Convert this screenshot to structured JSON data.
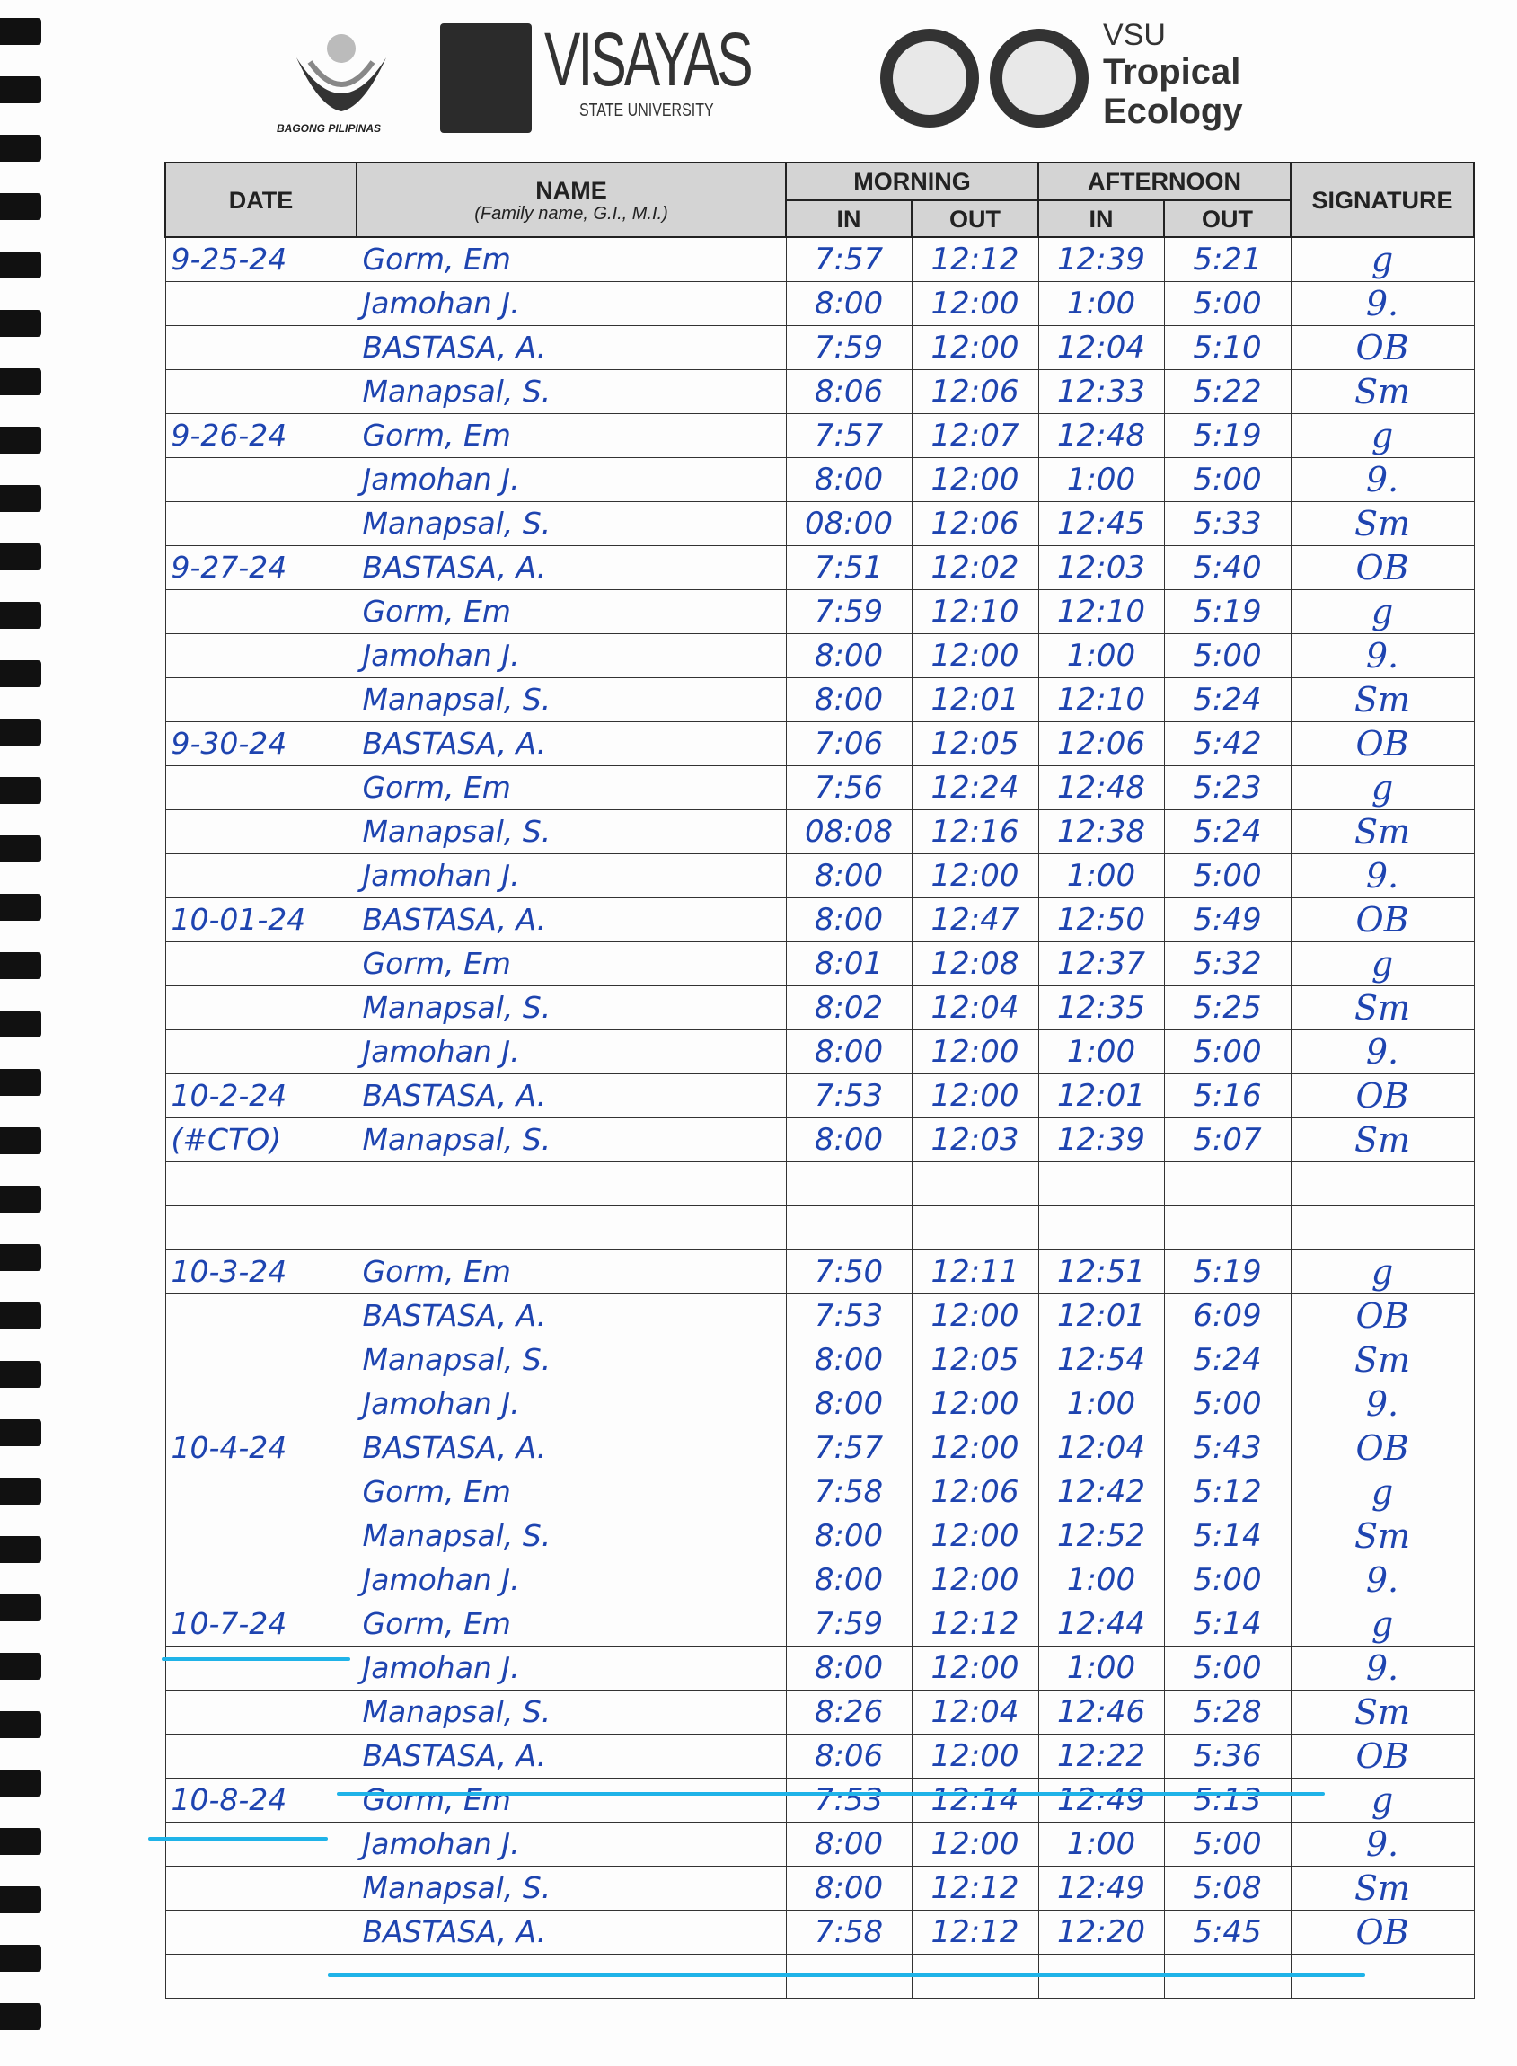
{
  "header": {
    "logos": {
      "bagong_pilipinas": "BAGONG PILIPINAS",
      "university": "VISAYAS",
      "university_sub": "STATE UNIVERSITY",
      "dept_line1": "VSU",
      "dept_line2": "Tropical",
      "dept_line3": "Ecology"
    }
  },
  "table": {
    "columns": {
      "date": "DATE",
      "name": "NAME",
      "name_sub": "(Family name, G.I., M.I.)",
      "morning": "MORNING",
      "afternoon": "AFTERNOON",
      "in": "IN",
      "out": "OUT",
      "signature": "SIGNATURE"
    },
    "ink_color": "#1e44b0",
    "highlight_color": "#1fb3e8",
    "rows": [
      {
        "date": "9-25-24",
        "name": "Gorm, Em",
        "am_in": "7:57",
        "am_out": "12:12",
        "pm_in": "12:39",
        "pm_out": "5:21",
        "sig": "g"
      },
      {
        "date": "",
        "name": "Jamohan J.",
        "am_in": "8:00",
        "am_out": "12:00",
        "pm_in": "1:00",
        "pm_out": "5:00",
        "sig": "9."
      },
      {
        "date": "",
        "name": "BASTASA, A.",
        "am_in": "7:59",
        "am_out": "12:00",
        "pm_in": "12:04",
        "pm_out": "5:10",
        "sig": "OB"
      },
      {
        "date": "",
        "name": "Manapsal, S.",
        "am_in": "8:06",
        "am_out": "12:06",
        "pm_in": "12:33",
        "pm_out": "5:22",
        "sig": "Sm"
      },
      {
        "date": "9-26-24",
        "name": "Gorm, Em",
        "am_in": "7:57",
        "am_out": "12:07",
        "pm_in": "12:48",
        "pm_out": "5:19",
        "sig": "g"
      },
      {
        "date": "",
        "name": "Jamohan J.",
        "am_in": "8:00",
        "am_out": "12:00",
        "pm_in": "1:00",
        "pm_out": "5:00",
        "sig": "9."
      },
      {
        "date": "",
        "name": "Manapsal, S.",
        "am_in": "08:00",
        "am_out": "12:06",
        "pm_in": "12:45",
        "pm_out": "5:33",
        "sig": "Sm"
      },
      {
        "date": "9-27-24",
        "name": "BASTASA, A.",
        "am_in": "7:51",
        "am_out": "12:02",
        "pm_in": "12:03",
        "pm_out": "5:40",
        "sig": "OB"
      },
      {
        "date": "",
        "name": "Gorm, Em",
        "am_in": "7:59",
        "am_out": "12:10",
        "pm_in": "12:10",
        "pm_out": "5:19",
        "sig": "g"
      },
      {
        "date": "",
        "name": "Jamohan J.",
        "am_in": "8:00",
        "am_out": "12:00",
        "pm_in": "1:00",
        "pm_out": "5:00",
        "sig": "9."
      },
      {
        "date": "",
        "name": "Manapsal, S.",
        "am_in": "8:00",
        "am_out": "12:01",
        "pm_in": "12:10",
        "pm_out": "5:24",
        "sig": "Sm"
      },
      {
        "date": "9-30-24",
        "name": "BASTASA, A.",
        "am_in": "7:06",
        "am_out": "12:05",
        "pm_in": "12:06",
        "pm_out": "5:42",
        "sig": "OB"
      },
      {
        "date": "",
        "name": "Gorm, Em",
        "am_in": "7:56",
        "am_out": "12:24",
        "pm_in": "12:48",
        "pm_out": "5:23",
        "sig": "g"
      },
      {
        "date": "",
        "name": "Manapsal, S.",
        "am_in": "08:08",
        "am_out": "12:16",
        "pm_in": "12:38",
        "pm_out": "5:24",
        "sig": "Sm"
      },
      {
        "date": "",
        "name": "Jamohan J.",
        "am_in": "8:00",
        "am_out": "12:00",
        "pm_in": "1:00",
        "pm_out": "5:00",
        "sig": "9."
      },
      {
        "date": "10-01-24",
        "name": "BASTASA, A.",
        "am_in": "8:00",
        "am_out": "12:47",
        "pm_in": "12:50",
        "pm_out": "5:49",
        "sig": "OB"
      },
      {
        "date": "",
        "name": "Gorm, Em",
        "am_in": "8:01",
        "am_out": "12:08",
        "pm_in": "12:37",
        "pm_out": "5:32",
        "sig": "g"
      },
      {
        "date": "",
        "name": "Manapsal, S.",
        "am_in": "8:02",
        "am_out": "12:04",
        "pm_in": "12:35",
        "pm_out": "5:25",
        "sig": "Sm"
      },
      {
        "date": "",
        "name": "Jamohan J.",
        "am_in": "8:00",
        "am_out": "12:00",
        "pm_in": "1:00",
        "pm_out": "5:00",
        "sig": "9."
      },
      {
        "date": "10-2-24",
        "name": "BASTASA, A.",
        "am_in": "7:53",
        "am_out": "12:00",
        "pm_in": "12:01",
        "pm_out": "5:16",
        "sig": "OB"
      },
      {
        "date": "(#CTO)",
        "name": "Manapsal, S.",
        "am_in": "8:00",
        "am_out": "12:03",
        "pm_in": "12:39",
        "pm_out": "5:07",
        "sig": "Sm"
      },
      {
        "date": "",
        "name": "",
        "am_in": "",
        "am_out": "",
        "pm_in": "",
        "pm_out": "",
        "sig": ""
      },
      {
        "date": "",
        "name": "",
        "am_in": "",
        "am_out": "",
        "pm_in": "",
        "pm_out": "",
        "sig": ""
      },
      {
        "date": "10-3-24",
        "name": "Gorm, Em",
        "am_in": "7:50",
        "am_out": "12:11",
        "pm_in": "12:51",
        "pm_out": "5:19",
        "sig": "g"
      },
      {
        "date": "",
        "name": "BASTASA, A.",
        "am_in": "7:53",
        "am_out": "12:00",
        "pm_in": "12:01",
        "pm_out": "6:09",
        "sig": "OB"
      },
      {
        "date": "",
        "name": "Manapsal, S.",
        "am_in": "8:00",
        "am_out": "12:05",
        "pm_in": "12:54",
        "pm_out": "5:24",
        "sig": "Sm"
      },
      {
        "date": "",
        "name": "Jamohan J.",
        "am_in": "8:00",
        "am_out": "12:00",
        "pm_in": "1:00",
        "pm_out": "5:00",
        "sig": "9."
      },
      {
        "date": "10-4-24",
        "name": "BASTASA, A.",
        "am_in": "7:57",
        "am_out": "12:00",
        "pm_in": "12:04",
        "pm_out": "5:43",
        "sig": "OB"
      },
      {
        "date": "",
        "name": "Gorm, Em",
        "am_in": "7:58",
        "am_out": "12:06",
        "pm_in": "12:42",
        "pm_out": "5:12",
        "sig": "g"
      },
      {
        "date": "",
        "name": "Manapsal, S.",
        "am_in": "8:00",
        "am_out": "12:00",
        "pm_in": "12:52",
        "pm_out": "5:14",
        "sig": "Sm"
      },
      {
        "date": "",
        "name": "Jamohan J.",
        "am_in": "8:00",
        "am_out": "12:00",
        "pm_in": "1:00",
        "pm_out": "5:00",
        "sig": "9."
      },
      {
        "date": "10-7-24",
        "name": "Gorm, Em",
        "am_in": "7:59",
        "am_out": "12:12",
        "pm_in": "12:44",
        "pm_out": "5:14",
        "sig": "g"
      },
      {
        "date": "",
        "name": "Jamohan J.",
        "am_in": "8:00",
        "am_out": "12:00",
        "pm_in": "1:00",
        "pm_out": "5:00",
        "sig": "9."
      },
      {
        "date": "",
        "name": "Manapsal, S.",
        "am_in": "8:26",
        "am_out": "12:04",
        "pm_in": "12:46",
        "pm_out": "5:28",
        "sig": "Sm"
      },
      {
        "date": "",
        "name": "BASTASA, A.",
        "am_in": "8:06",
        "am_out": "12:00",
        "pm_in": "12:22",
        "pm_out": "5:36",
        "sig": "OB"
      },
      {
        "date": "10-8-24",
        "name": "Gorm, Em",
        "am_in": "7:53",
        "am_out": "12:14",
        "pm_in": "12:49",
        "pm_out": "5:13",
        "sig": "g"
      },
      {
        "date": "",
        "name": "Jamohan J.",
        "am_in": "8:00",
        "am_out": "12:00",
        "pm_in": "1:00",
        "pm_out": "5:00",
        "sig": "9."
      },
      {
        "date": "",
        "name": "Manapsal, S.",
        "am_in": "8:00",
        "am_out": "12:12",
        "pm_in": "12:49",
        "pm_out": "5:08",
        "sig": "Sm"
      },
      {
        "date": "",
        "name": "BASTASA, A.",
        "am_in": "7:58",
        "am_out": "12:12",
        "pm_in": "12:20",
        "pm_out": "5:45",
        "sig": "OB"
      },
      {
        "date": "",
        "name": "",
        "am_in": "",
        "am_out": "",
        "pm_in": "",
        "pm_out": "",
        "sig": ""
      }
    ]
  }
}
